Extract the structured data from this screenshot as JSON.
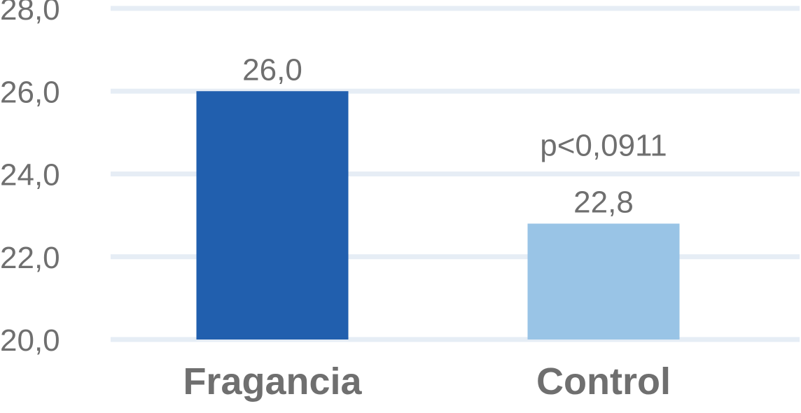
{
  "chart_data": {
    "type": "bar",
    "categories": [
      "Fragancia",
      "Control"
    ],
    "values": [
      26.0,
      22.8
    ],
    "value_labels": [
      "26,0",
      "22,8"
    ],
    "colors": [
      "#215fae",
      "#99c4e6"
    ],
    "ylim": [
      20.0,
      28.0
    ],
    "yticks": [
      20.0,
      22.0,
      24.0,
      26.0,
      28.0
    ],
    "ytick_labels": [
      "20,0",
      "22,0",
      "24,0",
      "26,0",
      "28,0"
    ],
    "grid": true,
    "annotations": [
      {
        "text": "p<0,0911",
        "category": "Control"
      }
    ],
    "title": "",
    "xlabel": "",
    "ylabel": ""
  }
}
